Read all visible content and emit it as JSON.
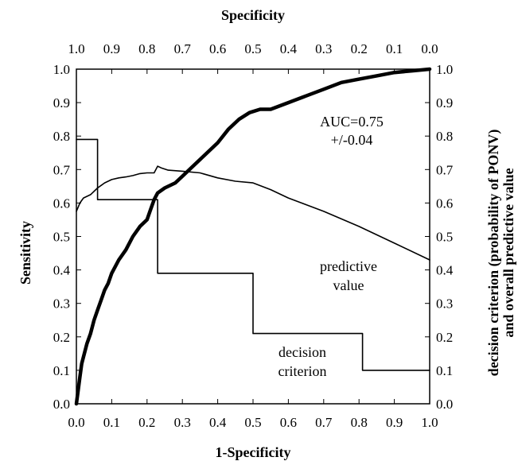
{
  "chart_data": {
    "type": "line",
    "top_axis_title": "Specificity",
    "bottom_axis_title": "1-Specificity",
    "left_axis_title": "Sensitivity",
    "right_axis_title_line1": "decision criterion (probability of PONV)",
    "right_axis_title_line2": "and overall predictive value",
    "xlim": [
      0,
      1
    ],
    "ylim": [
      0,
      1
    ],
    "bottom_ticks": [
      "0.0",
      "0.1",
      "0.2",
      "0.3",
      "0.4",
      "0.5",
      "0.6",
      "0.7",
      "0.8",
      "0.9",
      "1.0"
    ],
    "top_ticks": [
      "1.0",
      "0.9",
      "0.8",
      "0.7",
      "0.6",
      "0.5",
      "0.4",
      "0.3",
      "0.2",
      "0.1",
      "0.0"
    ],
    "left_ticks": [
      "0.0",
      "0.1",
      "0.2",
      "0.3",
      "0.4",
      "0.5",
      "0.6",
      "0.7",
      "0.8",
      "0.9",
      "1.0"
    ],
    "right_ticks": [
      "0.0",
      "0.1",
      "0.2",
      "0.3",
      "0.4",
      "0.5",
      "0.6",
      "0.7",
      "0.8",
      "0.9",
      "1.0"
    ],
    "annotations": {
      "auc_line1": "AUC=0.75",
      "auc_line2": "+/-0.04",
      "predictive_line1": "predictive",
      "predictive_line2": "value",
      "decision_line1": "decision",
      "decision_line2": "criterion"
    },
    "series": [
      {
        "key": "roc",
        "style": "thick",
        "x": [
          0.0,
          0.005,
          0.01,
          0.015,
          0.02,
          0.03,
          0.04,
          0.05,
          0.06,
          0.07,
          0.08,
          0.09,
          0.1,
          0.12,
          0.14,
          0.16,
          0.18,
          0.2,
          0.21,
          0.22,
          0.23,
          0.25,
          0.28,
          0.3,
          0.33,
          0.36,
          0.4,
          0.43,
          0.46,
          0.49,
          0.52,
          0.55,
          0.6,
          0.65,
          0.7,
          0.75,
          0.8,
          0.85,
          0.9,
          0.95,
          1.0
        ],
        "y": [
          0.0,
          0.04,
          0.08,
          0.12,
          0.14,
          0.18,
          0.21,
          0.25,
          0.28,
          0.31,
          0.34,
          0.36,
          0.39,
          0.43,
          0.46,
          0.5,
          0.53,
          0.55,
          0.58,
          0.61,
          0.63,
          0.645,
          0.66,
          0.68,
          0.71,
          0.74,
          0.78,
          0.82,
          0.85,
          0.87,
          0.88,
          0.88,
          0.9,
          0.92,
          0.94,
          0.96,
          0.97,
          0.98,
          0.99,
          0.995,
          1.0
        ]
      },
      {
        "key": "predictive_value",
        "style": "thin",
        "x": [
          0.0,
          0.01,
          0.02,
          0.04,
          0.06,
          0.08,
          0.1,
          0.12,
          0.14,
          0.16,
          0.18,
          0.2,
          0.22,
          0.23,
          0.24,
          0.26,
          0.3,
          0.35,
          0.4,
          0.45,
          0.5,
          0.55,
          0.6,
          0.65,
          0.7,
          0.8,
          0.9,
          1.0
        ],
        "y": [
          0.575,
          0.6,
          0.615,
          0.625,
          0.645,
          0.66,
          0.67,
          0.675,
          0.678,
          0.682,
          0.688,
          0.69,
          0.69,
          0.71,
          0.705,
          0.698,
          0.695,
          0.69,
          0.675,
          0.665,
          0.66,
          0.64,
          0.615,
          0.595,
          0.575,
          0.53,
          0.48,
          0.43
        ]
      },
      {
        "key": "decision_criterion",
        "style": "step",
        "x": [
          0.0,
          0.06,
          0.06,
          0.23,
          0.23,
          0.5,
          0.5,
          0.81,
          0.81,
          1.0
        ],
        "y": [
          0.79,
          0.79,
          0.61,
          0.61,
          0.39,
          0.39,
          0.21,
          0.21,
          0.1,
          0.1
        ]
      }
    ]
  }
}
